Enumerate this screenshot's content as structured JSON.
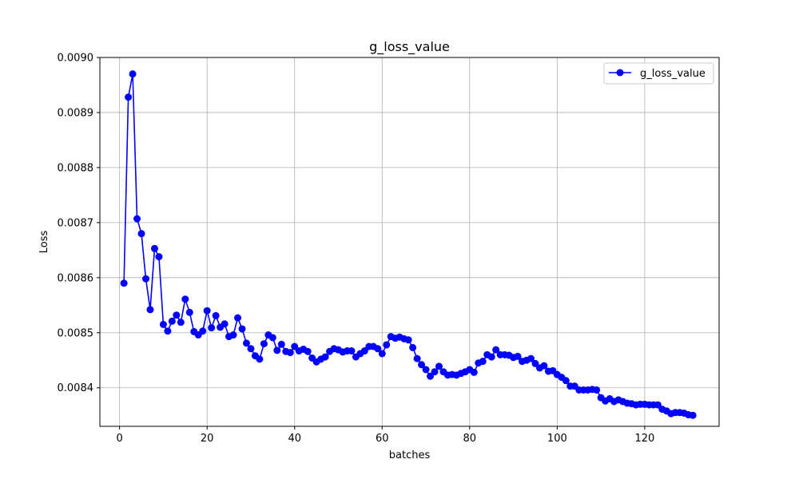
{
  "chart_data": {
    "type": "line",
    "title": "g_loss_value",
    "xlabel": "batches",
    "ylabel": "Loss",
    "xlim": [
      -4.5,
      137
    ],
    "ylim": [
      0.00833,
      0.009
    ],
    "grid": true,
    "legend_position": "top-right",
    "x_ticks": [
      0,
      20,
      40,
      60,
      80,
      100,
      120
    ],
    "x_tick_labels": [
      "0",
      "20",
      "40",
      "60",
      "80",
      "100",
      "120"
    ],
    "y_ticks": [
      0.0084,
      0.0085,
      0.0086,
      0.0087,
      0.0088,
      0.0089,
      0.009
    ],
    "y_tick_labels": [
      "0.0084",
      "0.0085",
      "0.0086",
      "0.0087",
      "0.0088",
      "0.0089",
      "0.0090"
    ],
    "series": [
      {
        "name": "g_loss_value",
        "color": "#0000ff",
        "marker": "circle",
        "x": [
          1,
          2,
          3,
          4,
          5,
          6,
          7,
          8,
          9,
          10,
          11,
          12,
          13,
          14,
          15,
          16,
          17,
          18,
          19,
          20,
          21,
          22,
          23,
          24,
          25,
          26,
          27,
          28,
          29,
          30,
          31,
          32,
          33,
          34,
          35,
          36,
          37,
          38,
          39,
          40,
          41,
          42,
          43,
          44,
          45,
          46,
          47,
          48,
          49,
          50,
          51,
          52,
          53,
          54,
          55,
          56,
          57,
          58,
          59,
          60,
          61,
          62,
          63,
          64,
          65,
          66,
          67,
          68,
          69,
          70,
          71,
          72,
          73,
          74,
          75,
          76,
          77,
          78,
          79,
          80,
          81,
          82,
          83,
          84,
          85,
          86,
          87,
          88,
          89,
          90,
          91,
          92,
          93,
          94,
          95,
          96,
          97,
          98,
          99,
          100,
          101,
          102,
          103,
          104,
          105,
          106,
          107,
          108,
          109,
          110,
          111,
          112,
          113,
          114,
          115,
          116,
          117,
          118,
          119,
          120,
          121,
          122,
          123,
          124,
          125,
          126,
          127,
          128,
          129,
          130,
          131
        ],
        "y": [
          0.00859,
          0.008928,
          0.00897,
          0.008707,
          0.00868,
          0.008598,
          0.008542,
          0.008653,
          0.008638,
          0.008515,
          0.008503,
          0.008521,
          0.008532,
          0.008519,
          0.008561,
          0.008537,
          0.008502,
          0.008496,
          0.008503,
          0.00854,
          0.008509,
          0.008531,
          0.00851,
          0.008516,
          0.008493,
          0.008496,
          0.008527,
          0.008507,
          0.008481,
          0.008471,
          0.008458,
          0.008452,
          0.00848,
          0.008496,
          0.008491,
          0.008468,
          0.008479,
          0.008466,
          0.008464,
          0.008475,
          0.008467,
          0.00847,
          0.008466,
          0.008454,
          0.008447,
          0.008452,
          0.008456,
          0.008466,
          0.008471,
          0.008469,
          0.008465,
          0.008467,
          0.008467,
          0.008456,
          0.008462,
          0.008467,
          0.008475,
          0.008475,
          0.008471,
          0.008462,
          0.008478,
          0.008493,
          0.00849,
          0.008492,
          0.008489,
          0.008487,
          0.008473,
          0.008453,
          0.008442,
          0.008433,
          0.008421,
          0.008429,
          0.008439,
          0.008429,
          0.008423,
          0.008424,
          0.008423,
          0.008426,
          0.008429,
          0.008433,
          0.008428,
          0.008445,
          0.008448,
          0.00846,
          0.008456,
          0.008469,
          0.00846,
          0.00846,
          0.008459,
          0.008455,
          0.008457,
          0.008448,
          0.00845,
          0.008453,
          0.008444,
          0.008436,
          0.00844,
          0.00843,
          0.008431,
          0.008424,
          0.008419,
          0.008413,
          0.008403,
          0.008403,
          0.008396,
          0.008396,
          0.008396,
          0.008397,
          0.008396,
          0.008382,
          0.008376,
          0.00838,
          0.008375,
          0.008378,
          0.008375,
          0.008372,
          0.008371,
          0.008369,
          0.00837,
          0.00837,
          0.008369,
          0.008369,
          0.008369,
          0.008361,
          0.008358,
          0.008353,
          0.008355,
          0.008355,
          0.008354,
          0.008351,
          0.00835
        ]
      }
    ]
  }
}
